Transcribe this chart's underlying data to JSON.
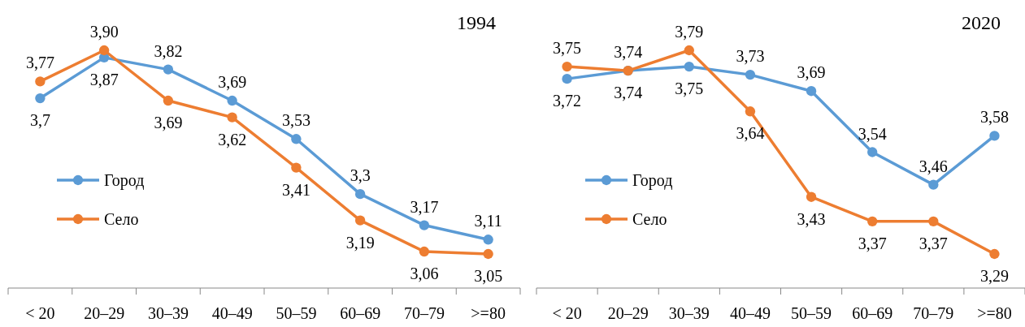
{
  "chart_data": [
    {
      "type": "line",
      "title": "1994",
      "categories": [
        "< 20",
        "20–29",
        "30–39",
        "40–49",
        "50–59",
        "60–69",
        "70–79",
        ">=80"
      ],
      "legend": "left",
      "marker": "circle",
      "line_style": "solid",
      "series": [
        {
          "name": "Город",
          "color": "#5b9bd5",
          "values": [
            3.7,
            3.87,
            3.82,
            3.69,
            3.53,
            3.3,
            3.17,
            3.11
          ],
          "value_labels": [
            "3,7",
            "3,87",
            "3,82",
            "3,69",
            "3,53",
            "3,3",
            "3,17",
            "3,11"
          ]
        },
        {
          "name": "Село",
          "color": "#ed7d31",
          "values": [
            3.77,
            3.9,
            3.69,
            3.62,
            3.41,
            3.19,
            3.06,
            3.05
          ],
          "value_labels": [
            "3,77",
            "3,90",
            "3,69",
            "3,62",
            "3,41",
            "3,19",
            "3,06",
            "3,05"
          ]
        }
      ]
    },
    {
      "type": "line",
      "title": "2020",
      "categories": [
        "< 20",
        "20–29",
        "30–39",
        "40–49",
        "50–59",
        "60–69",
        "70–79",
        ">=80"
      ],
      "legend": "left",
      "marker": "circle",
      "line_style": "solid",
      "series": [
        {
          "name": "Город",
          "color": "#5b9bd5",
          "values": [
            3.72,
            3.74,
            3.75,
            3.73,
            3.69,
            3.54,
            3.46,
            3.58
          ],
          "value_labels": [
            "3,72",
            "3,74",
            "3,75",
            "3,73",
            "3,69",
            "3,54",
            "3,46",
            "3,58"
          ]
        },
        {
          "name": "Село",
          "color": "#ed7d31",
          "values": [
            3.75,
            3.74,
            3.79,
            3.64,
            3.43,
            3.37,
            3.37,
            3.29
          ],
          "value_labels": [
            "3,75",
            "3,74",
            "3,79",
            "3,64",
            "3,43",
            "3,37",
            "3,37",
            "3,29"
          ]
        }
      ]
    }
  ]
}
